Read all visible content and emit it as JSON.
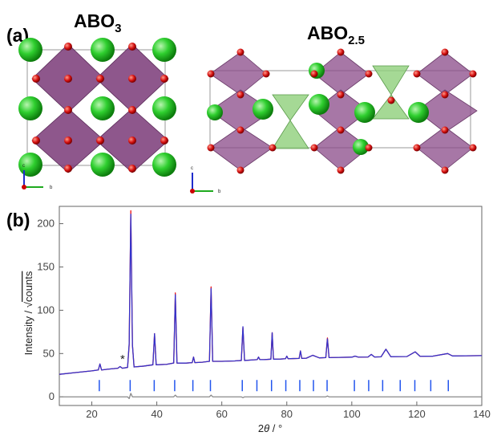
{
  "panel_a": {
    "label": "(a)",
    "structures": [
      {
        "formula": "ABO",
        "subscript": "3",
        "axis_labels": [
          "c",
          "b"
        ]
      },
      {
        "formula": "ABO",
        "subscript": "2.5",
        "axis_labels": [
          "c",
          "b"
        ]
      }
    ]
  },
  "chart_data": {
    "type": "line",
    "panel_label": "(b)",
    "x_label": [
      "2",
      "θ",
      " / °"
    ],
    "y_label": [
      "Intensity / √",
      "counts"
    ],
    "annotation": "*",
    "xlim": [
      10,
      140
    ],
    "xticks": [
      20,
      40,
      60,
      80,
      100,
      120,
      140
    ],
    "ylim": [
      -10,
      220
    ],
    "yticks": [
      0,
      50,
      100,
      150,
      200
    ],
    "x": [
      10,
      15,
      20,
      22,
      22.5,
      23,
      25,
      28,
      28.7,
      29.4,
      31,
      31.5,
      32,
      32.5,
      33,
      36,
      38.8,
      39.3,
      39.8,
      43,
      45.2,
      45.7,
      46.2,
      49,
      50.9,
      51.3,
      51.7,
      54,
      56.2,
      56.7,
      57.2,
      60,
      64,
      66,
      66.5,
      67,
      69,
      70.9,
      71.3,
      71.7,
      73,
      75.1,
      75.5,
      75.9,
      78,
      79.6,
      80,
      80.4,
      82,
      83.8,
      84.2,
      84.6,
      86,
      88,
      90,
      92,
      92.5,
      93,
      96,
      100,
      101,
      102,
      105,
      106,
      107,
      109,
      110.5,
      112,
      117,
      119.5,
      121,
      125,
      129.5,
      131,
      135,
      140
    ],
    "series": [
      {
        "color": "#ee1111",
        "values": [
          26,
          28,
          30,
          31,
          38,
          31,
          32,
          33,
          35,
          33,
          34,
          60,
          215,
          60,
          34.5,
          35.5,
          37,
          73,
          37,
          37.5,
          39,
          120,
          39,
          39,
          39.5,
          46,
          39.5,
          40,
          41,
          127,
          41,
          41,
          41.5,
          42,
          80,
          42,
          42.5,
          43,
          46,
          43,
          43,
          43.5,
          74,
          43.5,
          43.6,
          44,
          47,
          44,
          44.2,
          44.4,
          53,
          44.4,
          44.6,
          48,
          45,
          45.3,
          68,
          45.3,
          45.5,
          45.8,
          47,
          45.9,
          46,
          49,
          46,
          46.2,
          55,
          46.4,
          46.6,
          52,
          46.8,
          47,
          50,
          47.2,
          47.4,
          47.6
        ]
      },
      {
        "color": "#3333cc",
        "values": [
          26,
          28,
          30,
          31,
          38,
          31,
          32,
          33,
          35,
          33,
          34,
          62,
          211,
          60,
          34.5,
          35.5,
          37,
          73,
          37,
          37.5,
          39,
          118,
          39,
          39,
          39.5,
          46,
          39.5,
          40,
          41,
          125,
          41,
          41,
          41.5,
          42,
          81,
          42,
          42.5,
          43,
          46,
          43,
          43,
          43.5,
          74,
          43.5,
          43.6,
          44,
          47,
          44,
          44.2,
          44.4,
          53,
          44.4,
          44.6,
          48,
          45,
          45.3,
          67,
          45.3,
          45.5,
          45.8,
          47,
          45.9,
          46,
          49,
          46,
          46.2,
          55,
          46.4,
          46.6,
          52,
          46.8,
          47,
          50,
          47.2,
          47.4,
          47.6
        ]
      },
      {
        "color": "#8a8a8a",
        "values": [
          0,
          0,
          0,
          0,
          0,
          0,
          0,
          0,
          0,
          0,
          0,
          -2,
          4,
          0,
          0,
          0,
          0,
          0,
          0,
          0,
          0,
          2,
          0,
          0,
          0,
          0,
          0,
          0,
          0,
          2,
          0,
          0,
          0,
          0,
          -1,
          0,
          0,
          0,
          0,
          0,
          0,
          0,
          0,
          0,
          0,
          0,
          0,
          0,
          0,
          0,
          0,
          0,
          0,
          0,
          0,
          0,
          1,
          0,
          0,
          0,
          0,
          0,
          0,
          0,
          0,
          0,
          0,
          0,
          0,
          0,
          0,
          0,
          0,
          0,
          0,
          0
        ]
      }
    ],
    "bragg_color": "#2255ee",
    "bragg_positions": [
      22.3,
      31.8,
      39.2,
      45.5,
      51.1,
      56.5,
      66.3,
      70.8,
      75.3,
      79.7,
      84.0,
      88.2,
      92.4,
      100.8,
      105.2,
      109.5,
      114.9,
      119.4,
      124.3,
      129.7
    ]
  }
}
